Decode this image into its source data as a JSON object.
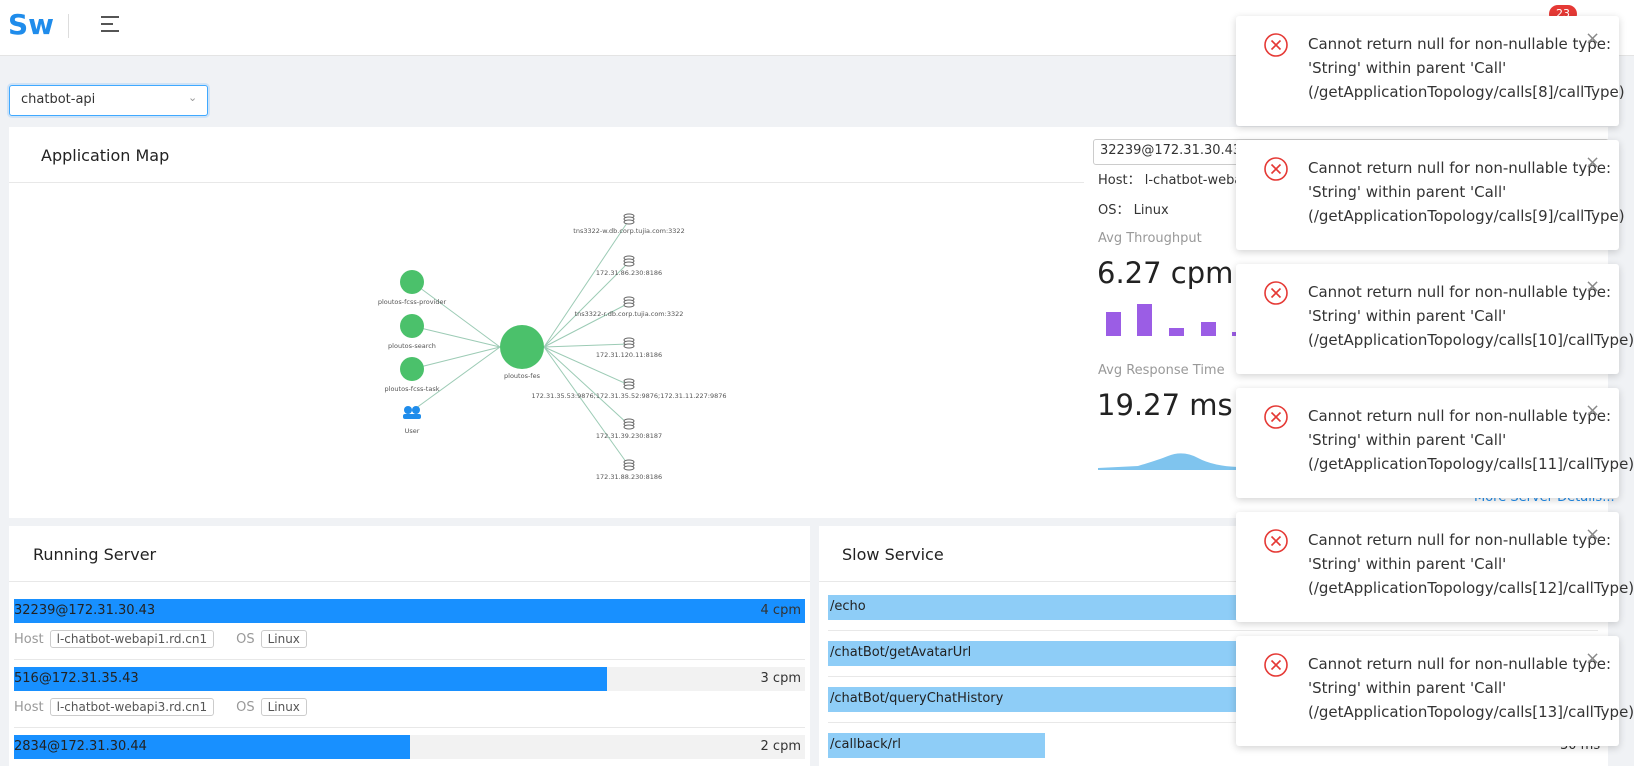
{
  "header": {
    "logo": "Sw",
    "badge": "23"
  },
  "app_select": "chatbot-api",
  "application_map": {
    "title": "Application Map",
    "left_nodes": [
      "ploutos-fcss-provider",
      "ploutos-search",
      "ploutos-fcss-task",
      "User"
    ],
    "center_node": "ploutos-fes",
    "right_nodes": [
      "tns3322-w.db.corp.tujia.com:3322",
      "172.31.86.230:8186",
      "tns3322-r.db.corp.tujia.com:3322",
      "172.31.120.11:8186",
      "172.31.35.53:9876;172.31.35.52:9876;172.31.11.227:9876",
      "172.31.39.230:8187",
      "172.31.88.230:8186"
    ]
  },
  "server_panel": {
    "instance": "32239@172.31.30.43",
    "host_label": "Host：",
    "host": "l-chatbot-weba",
    "os_label": "OS：",
    "os": "Linux",
    "throughput_label": "Avg Throughput",
    "throughput": "6.27 cpm",
    "response_label": "Avg Response Time",
    "response": "19.27 ms",
    "more": "More Server Details..."
  },
  "running_server": {
    "title": "Running Server",
    "rows": [
      {
        "name": "32239@172.31.30.43",
        "value": 4,
        "value_label": "4 cpm",
        "host_label": "Host",
        "host": "l-chatbot-webapi1.rd.cn1",
        "os_label": "OS",
        "os": "Linux"
      },
      {
        "name": "516@172.31.35.43",
        "value": 3,
        "value_label": "3 cpm",
        "host_label": "Host",
        "host": "l-chatbot-webapi3.rd.cn1",
        "os_label": "OS",
        "os": "Linux"
      },
      {
        "name": "2834@172.31.30.44",
        "value": 2,
        "value_label": "2 cpm"
      }
    ]
  },
  "slow_service": {
    "title": "Slow Service",
    "rows": [
      {
        "name": "/echo"
      },
      {
        "name": "/chatBot/getAvatarUrl"
      },
      {
        "name": "/chatBot/queryChatHistory"
      },
      {
        "name": "/callback/rl",
        "value_label": "30 ms"
      }
    ]
  },
  "notifications": [
    [
      "Cannot return null for non-nullable type:",
      "'String' within parent 'Call'",
      "(/getApplicationTopology/calls[8]/callType)"
    ],
    [
      "Cannot return null for non-nullable type:",
      "'String' within parent 'Call'",
      "(/getApplicationTopology/calls[9]/callType)"
    ],
    [
      "Cannot return null for non-nullable type:",
      "'String' within parent 'Call'",
      "(/getApplicationTopology/calls[10]/callType)"
    ],
    [
      "Cannot return null for non-nullable type:",
      "'String' within parent 'Call'",
      "(/getApplicationTopology/calls[11]/callType)"
    ],
    [
      "Cannot return null for non-nullable type:",
      "'String' within parent 'Call'",
      "(/getApplicationTopology/calls[12]/callType)"
    ],
    [
      "Cannot return null for non-nullable type:",
      "'String' within parent 'Call'",
      "(/getApplicationTopology/calls[13]/callType)"
    ]
  ]
}
